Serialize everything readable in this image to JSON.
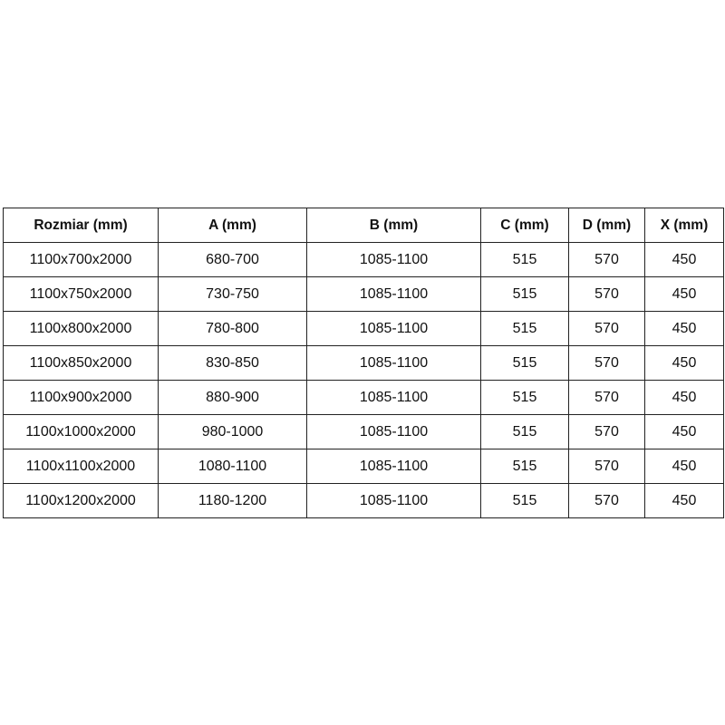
{
  "table": {
    "headers": [
      "Rozmiar (mm)",
      "A (mm)",
      "B (mm)",
      "C (mm)",
      "D (mm)",
      "X (mm)"
    ],
    "rows": [
      [
        "1100x700x2000",
        "680-700",
        "1085-1100",
        "515",
        "570",
        "450"
      ],
      [
        "1100x750x2000",
        "730-750",
        "1085-1100",
        "515",
        "570",
        "450"
      ],
      [
        "1100x800x2000",
        "780-800",
        "1085-1100",
        "515",
        "570",
        "450"
      ],
      [
        "1100x850x2000",
        "830-850",
        "1085-1100",
        "515",
        "570",
        "450"
      ],
      [
        "1100x900x2000",
        "880-900",
        "1085-1100",
        "515",
        "570",
        "450"
      ],
      [
        "1100x1000x2000",
        "980-1000",
        "1085-1100",
        "515",
        "570",
        "450"
      ],
      [
        "1100x1100x2000",
        "1080-1100",
        "1085-1100",
        "515",
        "570",
        "450"
      ],
      [
        "1100x1200x2000",
        "1180-1200",
        "1085-1100",
        "515",
        "570",
        "450"
      ]
    ]
  }
}
